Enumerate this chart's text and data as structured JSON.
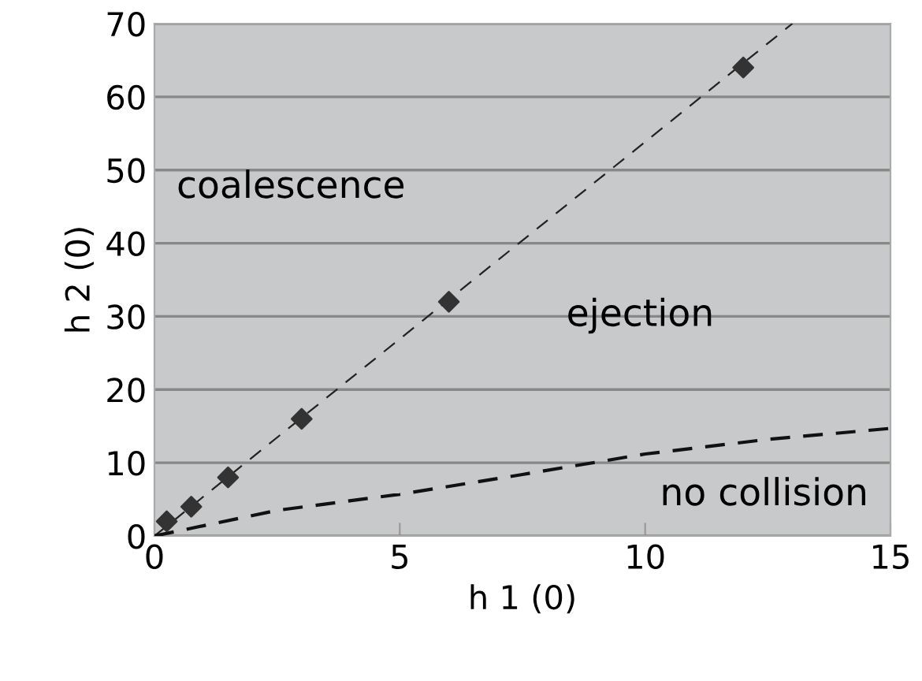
{
  "chart_data": {
    "type": "scatter",
    "xlabel": "h 1 (0)",
    "ylabel": "h 2 (0)",
    "xlim": [
      0,
      15
    ],
    "ylim": [
      0,
      70
    ],
    "xticks": [
      0,
      5,
      10,
      15
    ],
    "yticks": [
      0,
      10,
      20,
      30,
      40,
      50,
      60,
      70
    ],
    "grid": "y",
    "series": [
      {
        "color": "#333333",
        "marker": "diamond",
        "x": [
          0.25,
          0.75,
          1.5,
          3,
          6,
          12
        ],
        "values": [
          2,
          4,
          8,
          16,
          32,
          64
        ]
      },
      {
        "type": "line",
        "color": "#222222",
        "line_style": "dashed",
        "marker": "none",
        "x": [
          0,
          13
        ],
        "values": [
          0,
          70
        ]
      },
      {
        "type": "line",
        "color": "#111111",
        "line_style": "dashed",
        "marker": "none",
        "x": [
          0,
          2.5,
          5,
          7.5,
          10,
          12.5,
          15
        ],
        "values": [
          0,
          3.5,
          5.7,
          8.4,
          11.2,
          13.2,
          14.7
        ]
      }
    ],
    "annotations": [
      "coalescence",
      "ejection",
      "no collision"
    ]
  }
}
